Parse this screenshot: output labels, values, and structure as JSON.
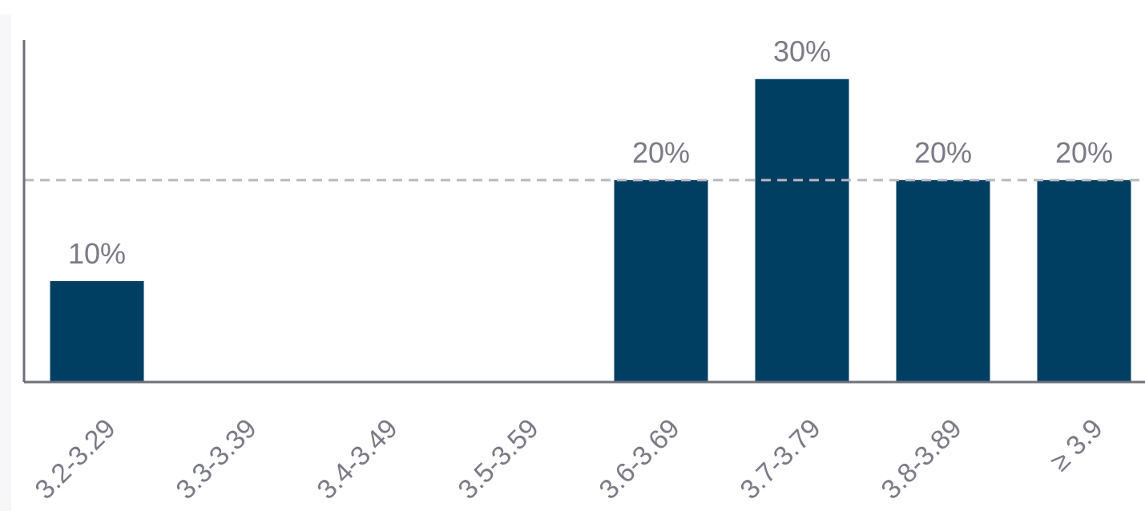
{
  "chart_data": {
    "type": "bar",
    "categories": [
      "3.2-3.29",
      "3.3-3.39",
      "3.4-3.49",
      "3.5-3.59",
      "3.6-3.69",
      "3.7-3.79",
      "3.8-3.89",
      "≥ 3.9"
    ],
    "values": [
      10,
      0,
      0,
      0,
      20,
      30,
      20,
      20
    ],
    "data_labels": [
      "10%",
      "",
      "",
      "",
      "20%",
      "30%",
      "20%",
      "20%"
    ],
    "ylim": [
      0,
      32
    ],
    "reference_line": 20,
    "bar_color": "#003f62",
    "axis_color": "#6e6f7a",
    "reference_line_color": "#b8b9bf",
    "label_color": "#7a7b87",
    "title": "",
    "xlabel": "",
    "ylabel": "",
    "grid": false,
    "legend": "none"
  }
}
